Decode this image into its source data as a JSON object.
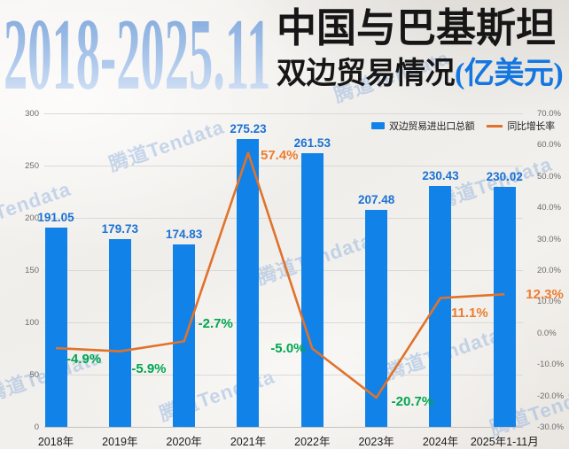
{
  "header": {
    "period_title": "2018-2025.11",
    "title_line1": "中国与巴基斯坦",
    "title_line2": "双边贸易情况",
    "title_unit": "(亿美元)",
    "unit_color": "#1476e0"
  },
  "watermark": {
    "text": "腾道Tendata"
  },
  "chart_data": {
    "type": "combo-bar-line",
    "categories": [
      "2018年",
      "2019年",
      "2020年",
      "2021年",
      "2022年",
      "2023年",
      "2024年",
      "2025年1-11月"
    ],
    "series": [
      {
        "name": "双边贸易进出口总额",
        "type": "bar",
        "axis": "left",
        "color": "#1082e8",
        "label_color": "#1b72d4",
        "values": [
          191.05,
          179.73,
          174.83,
          275.23,
          261.53,
          207.48,
          230.43,
          230.02
        ]
      },
      {
        "name": "同比增长率",
        "type": "line",
        "axis": "right",
        "color": "#e0732c",
        "values": [
          -4.9,
          -5.9,
          -2.7,
          57.4,
          -5.0,
          -20.7,
          11.1,
          12.3
        ],
        "point_labels": [
          {
            "text": "-4.9%",
            "color": "#00a651"
          },
          {
            "text": "-5.9%",
            "color": "#00a651"
          },
          {
            "text": "-2.7%",
            "color": "#00a651"
          },
          {
            "text": "57.4%",
            "color": "#ed7d31"
          },
          {
            "text": "-5.0%",
            "color": "#00a651"
          },
          {
            "text": "-20.7%",
            "color": "#00a651"
          },
          {
            "text": "11.1%",
            "color": "#ed7d31"
          },
          {
            "text": "12.3%",
            "color": "#ed7d31"
          }
        ]
      }
    ],
    "left_axis": {
      "min": 0,
      "max": 300,
      "step": 50,
      "labels": [
        "300",
        "250",
        "200",
        "150",
        "100",
        "50",
        "0"
      ]
    },
    "right_axis": {
      "min": -30,
      "max": 70,
      "step": 10,
      "labels": [
        "70.0%",
        "60.0%",
        "50.0%",
        "40.0%",
        "30.0%",
        "20.0%",
        "10.0%",
        "0.0%",
        "-10.0%",
        "-20.0%",
        "-30.0%"
      ]
    },
    "grid": "horizontal",
    "legend_position": "top-right"
  }
}
